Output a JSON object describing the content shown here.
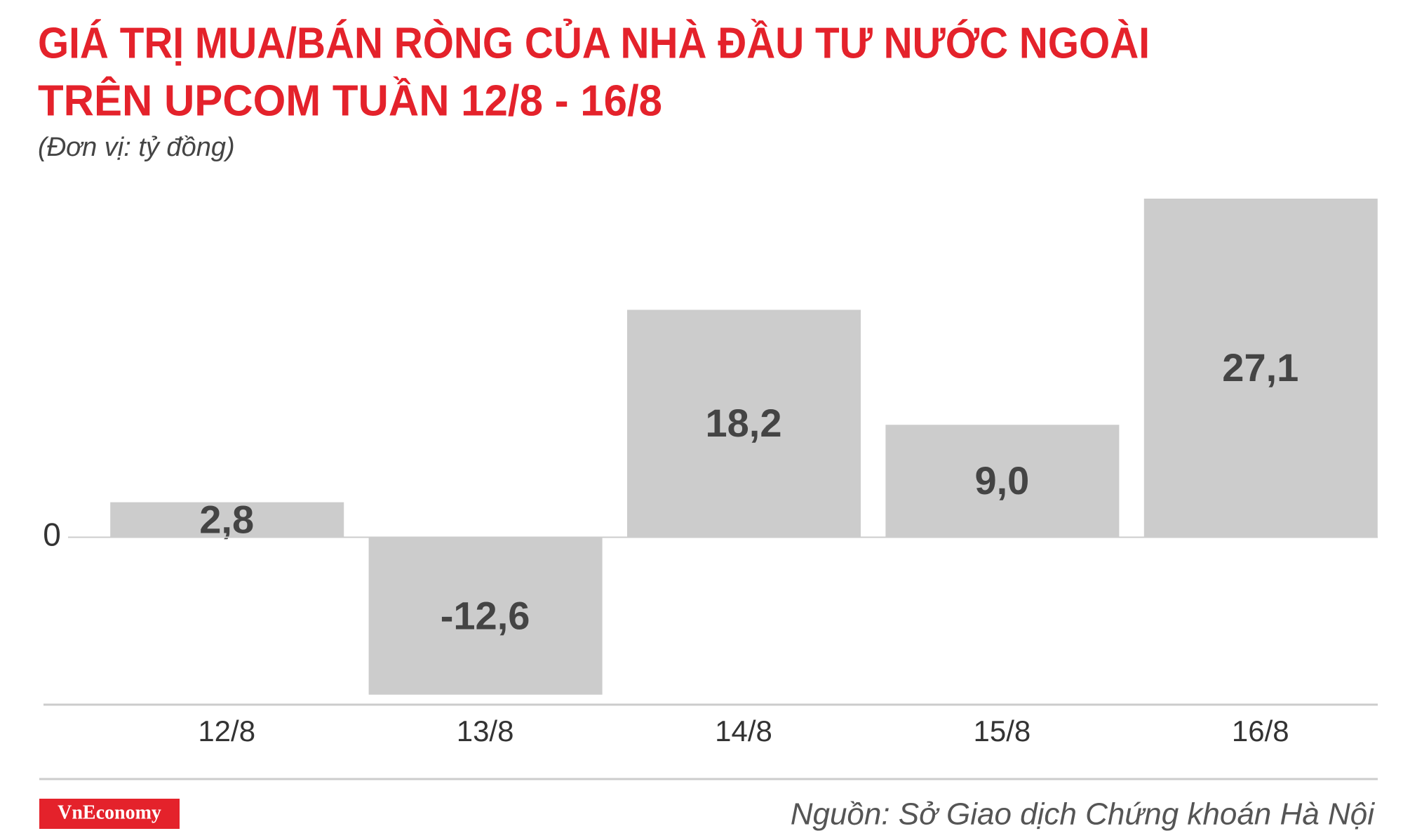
{
  "chart_data": {
    "type": "bar",
    "title": [
      "GIÁ TRỊ MUA/BÁN RÒNG CỦA NHÀ ĐẦU TƯ NƯỚC NGOÀI",
      "TRÊN UPCOM TUẦN 12/8 - 16/8"
    ],
    "subtitle": "(Đơn vị: tỷ đồng)",
    "categories": [
      "12/8",
      "13/8",
      "14/8",
      "15/8",
      "16/8"
    ],
    "values": [
      2.8,
      -12.6,
      18.2,
      9.0,
      27.1
    ],
    "value_labels": [
      "2,8",
      "-12,6",
      "18,2",
      "9,0",
      "27,1"
    ],
    "color": "#cccccc",
    "ylim": [
      -13.4,
      27.1
    ],
    "yticks": [
      0
    ]
  },
  "footer": {
    "logo": "VnEconomy",
    "source": "Nguồn: Sở Giao dịch Chứng khoán Hà Nội"
  }
}
